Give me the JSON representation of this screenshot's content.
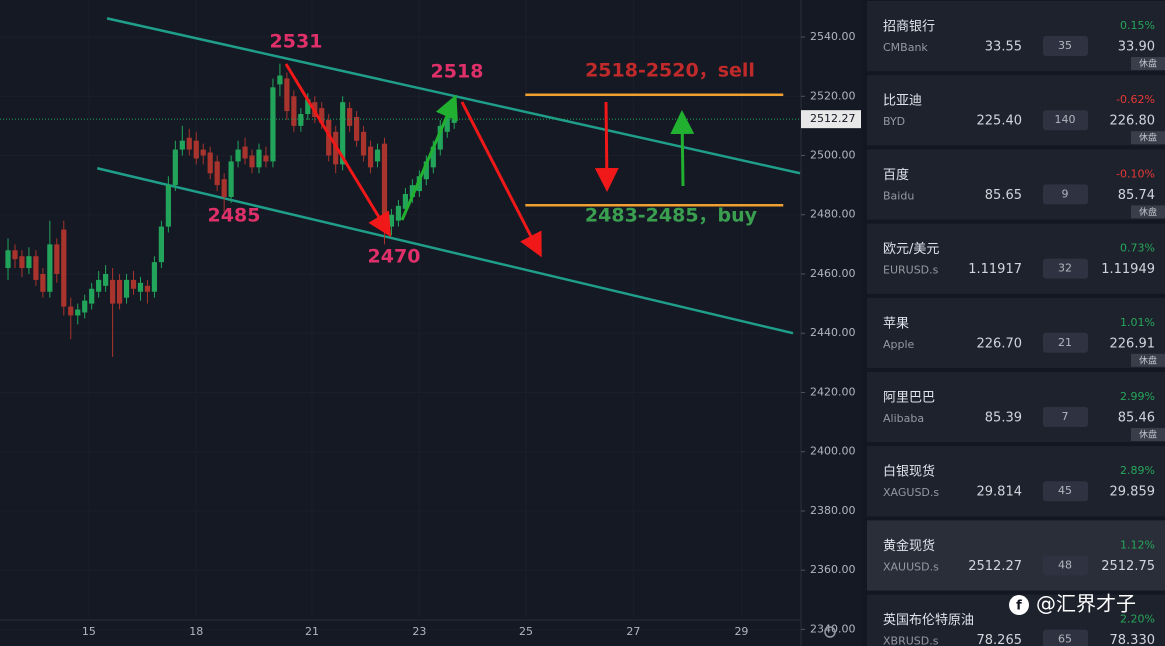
{
  "chart_data": {
    "type": "candlestick",
    "up_color": "#22a55a",
    "down_color": "#a8342d",
    "candles": {
      "open": [
        2462,
        2468,
        2466,
        2462,
        2466,
        2460,
        2454,
        2470,
        2475,
        2449,
        2446,
        2447,
        2450,
        2454,
        2456,
        2458,
        2458,
        2452,
        2458,
        2454,
        2456,
        2454,
        2464,
        2476,
        2490,
        2502,
        2506,
        2505,
        2502,
        2501,
        2498,
        2492,
        2486,
        2498,
        2503,
        2500,
        2496,
        2500,
        2498,
        2524,
        2526,
        2520,
        2510,
        2514,
        2518,
        2516,
        2512,
        2508,
        2497,
        2516,
        2513,
        2508,
        2503,
        2498,
        2504,
        2476,
        2478,
        2482,
        2486,
        2488,
        2492,
        2496,
        2502,
        2508,
        2511
      ],
      "high": [
        2472,
        2470,
        2468,
        2469,
        2468,
        2462,
        2478,
        2472,
        2478,
        2452,
        2450,
        2453,
        2457,
        2461,
        2463,
        2462,
        2460,
        2460,
        2461,
        2459,
        2458,
        2466,
        2478,
        2493,
        2505,
        2510,
        2509,
        2508,
        2504,
        2503,
        2500,
        2494,
        2500,
        2505,
        2506,
        2502,
        2504,
        2503,
        2526,
        2531,
        2528,
        2522,
        2516,
        2521,
        2520,
        2518,
        2514,
        2510,
        2520,
        2518,
        2515,
        2510,
        2505,
        2504,
        2506,
        2482,
        2485,
        2489,
        2492,
        2495,
        2500,
        2505,
        2512,
        2515,
        2516
      ],
      "low": [
        2458,
        2462,
        2459,
        2460,
        2456,
        2452,
        2452,
        2457,
        2446,
        2438,
        2443,
        2445,
        2448,
        2452,
        2454,
        2432,
        2448,
        2450,
        2453,
        2451,
        2450,
        2452,
        2462,
        2474,
        2488,
        2500,
        2500,
        2497,
        2497,
        2492,
        2488,
        2481,
        2484,
        2496,
        2497,
        2494,
        2494,
        2496,
        2496,
        2520,
        2512,
        2508,
        2508,
        2512,
        2511,
        2509,
        2498,
        2494,
        2495,
        2508,
        2503,
        2498,
        2494,
        2496,
        2470,
        2473,
        2476,
        2480,
        2484,
        2486,
        2490,
        2494,
        2500,
        2506,
        2509
      ],
      "close": [
        2468,
        2465,
        2462,
        2466,
        2458,
        2454,
        2470,
        2460,
        2449,
        2446,
        2448,
        2451,
        2455,
        2458,
        2460,
        2450,
        2450,
        2458,
        2455,
        2457,
        2454,
        2464,
        2476,
        2490,
        2502,
        2505,
        2502,
        2499,
        2500,
        2494,
        2490,
        2486,
        2498,
        2502,
        2499,
        2496,
        2502,
        2498,
        2523,
        2527,
        2515,
        2510,
        2514,
        2519,
        2513,
        2511,
        2500,
        2497,
        2518,
        2510,
        2505,
        2500,
        2496,
        2502,
        2478,
        2480,
        2483,
        2487,
        2490,
        2493,
        2498,
        2503,
        2510,
        2513,
        2512.27
      ]
    },
    "xlim": [
      -1.15,
      113.6
    ],
    "xticks": [
      {
        "value": 11.6,
        "label": "15"
      },
      {
        "value": 27,
        "label": "18"
      },
      {
        "value": 43.6,
        "label": "21"
      },
      {
        "value": 59,
        "label": "23"
      },
      {
        "value": 74.3,
        "label": "25"
      },
      {
        "value": 89.7,
        "label": "27"
      },
      {
        "value": 105.2,
        "label": "29"
      }
    ],
    "ylim": [
      2334.4,
      2552.5
    ],
    "yticks": [
      {
        "value": 2340,
        "label": "2340.00"
      },
      {
        "value": 2360,
        "label": "2360.00"
      },
      {
        "value": 2380,
        "label": "2380.00"
      },
      {
        "value": 2400,
        "label": "2400.00"
      },
      {
        "value": 2420,
        "label": "2420.00"
      },
      {
        "value": 2440,
        "label": "2440.00"
      },
      {
        "value": 2460,
        "label": "2460.00"
      },
      {
        "value": 2480,
        "label": "2480.00"
      },
      {
        "value": 2500,
        "label": "2500.00"
      },
      {
        "value": 2520,
        "label": "2520.00"
      },
      {
        "value": 2540,
        "label": "2540.00"
      }
    ],
    "last_price": 2512.27,
    "lines": [
      {
        "from": [
          14.2,
          2546.3
        ],
        "to": [
          113.6,
          2494
        ],
        "color": "#1f9e8a"
      },
      {
        "from": [
          12.8,
          2495.7
        ],
        "to": [
          112.6,
          2440
        ],
        "color": "#1f9e8a"
      },
      {
        "from": [
          74.2,
          2520.5
        ],
        "to": [
          111.2,
          2520.5
        ],
        "color": "#f0a030"
      },
      {
        "from": [
          74.2,
          2483.2
        ],
        "to": [
          111.2,
          2483.2
        ],
        "color": "#f0a030"
      }
    ],
    "annotations": [
      {
        "text": "2531",
        "color": "#e0306a"
      },
      {
        "text": "2518",
        "color": "#e0306a"
      },
      {
        "text": "2485",
        "color": "#e0306a"
      },
      {
        "text": "2470",
        "color": "#e0306a"
      },
      {
        "text": "2518-2520，sell",
        "color": "#c02a2a"
      },
      {
        "text": "2483-2485，buy",
        "color": "#3aa050"
      }
    ]
  },
  "watchlist": [
    {
      "name": "招商银行",
      "code": "CMBank",
      "bid": "33.55",
      "volume": "35",
      "ask": "33.90",
      "change": "0.15%",
      "status": "休盘"
    },
    {
      "name": "比亚迪",
      "code": "BYD",
      "bid": "225.40",
      "volume": "140",
      "ask": "226.80",
      "change": "-0.62%",
      "status": "休盘"
    },
    {
      "name": "百度",
      "code": "Baidu",
      "bid": "85.65",
      "volume": "9",
      "ask": "85.74",
      "change": "-0.10%",
      "status": "休盘"
    },
    {
      "name": "欧元/美元",
      "code": "EURUSD.s",
      "bid": "1.11917",
      "volume": "32",
      "ask": "1.11949",
      "change": "0.73%"
    },
    {
      "name": "苹果",
      "code": "Apple",
      "bid": "226.70",
      "volume": "21",
      "ask": "226.91",
      "change": "1.01%",
      "status": "休盘"
    },
    {
      "name": "阿里巴巴",
      "code": "Alibaba",
      "bid": "85.39",
      "volume": "7",
      "ask": "85.46",
      "change": "2.99%",
      "status": "休盘"
    },
    {
      "name": "白银现货",
      "code": "XAGUSD.s",
      "bid": "29.814",
      "volume": "45",
      "ask": "29.859",
      "change": "2.89%"
    },
    {
      "name": "黄金现货",
      "code": "XAUUSD.s",
      "bid": "2512.27",
      "volume": "48",
      "ask": "2512.75",
      "change": "1.12%",
      "selected": true
    },
    {
      "name": "英国布伦特原油",
      "code": "XBRUSD.s",
      "bid": "78.265",
      "volume": "65",
      "ask": "78.330",
      "change": "2.20%"
    }
  ],
  "watermark": "@汇界才子"
}
